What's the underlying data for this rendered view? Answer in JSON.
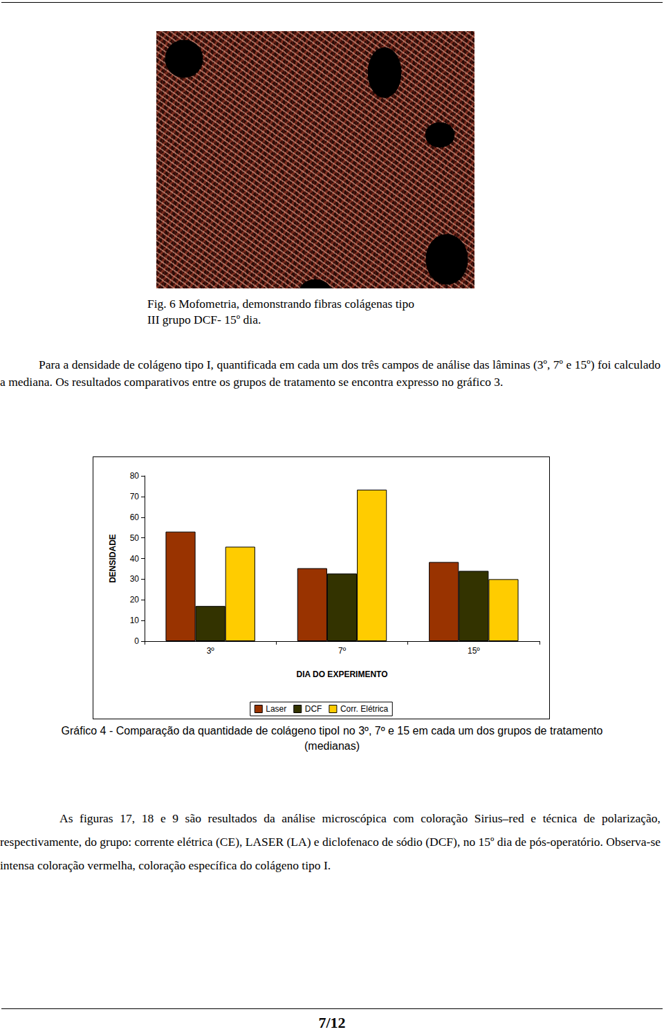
{
  "figure": {
    "caption_lines": [
      "Fig. 6 Mofometria, demonstrando fibras colágenas tipo",
      "III grupo DCF- 15º dia."
    ]
  },
  "text_before_chart": "Para a densidade de colágeno tipo I, quantificada em cada um dos três campos de análise das lâminas (3º, 7º e 15º) foi calculado a mediana. Os resultados comparativos entre os grupos de tratamento se encontra expresso no gráfico 3.",
  "chart_data": {
    "type": "bar",
    "x_label": "DIA DO EXPERIMENTO",
    "y_label": "DENSIDADE",
    "categories": [
      "3º",
      "7º",
      "15º"
    ],
    "series": [
      {
        "name": "Laser",
        "color": "#993300",
        "values": [
          53,
          35.3,
          38.3
        ]
      },
      {
        "name": "DCF",
        "color": "#333300",
        "values": [
          17,
          32.7,
          34
        ]
      },
      {
        "name": "Corr. Elétrica",
        "color": "#ffcc00",
        "values": [
          45.7,
          73.3,
          30
        ]
      }
    ],
    "ylim": [
      0,
      80
    ],
    "yticks": [
      0,
      10,
      20,
      30,
      40,
      50,
      60,
      70,
      80
    ],
    "grid": false,
    "legend": "bottom",
    "data_labels": false
  },
  "chart_caption_lines": [
    "Gráfico 4 - Comparação da quantidade de colágeno tipoI no 3º, 7º e 15 em cada um dos grupos de tratamento",
    "(medianas)"
  ],
  "text_after_chart": "As figuras 17, 18 e 9 são resultados da análise microscópica com coloração Sirius–red e técnica de polarização, respectivamente, do grupo: corrente elétrica (CE), LASER (LA) e diclofenaco de sódio (DCF), no 15º dia de pós-operatório. Observa-se intensa coloração vermelha, coloração específica do colágeno tipo I.",
  "page_number": "7/12"
}
